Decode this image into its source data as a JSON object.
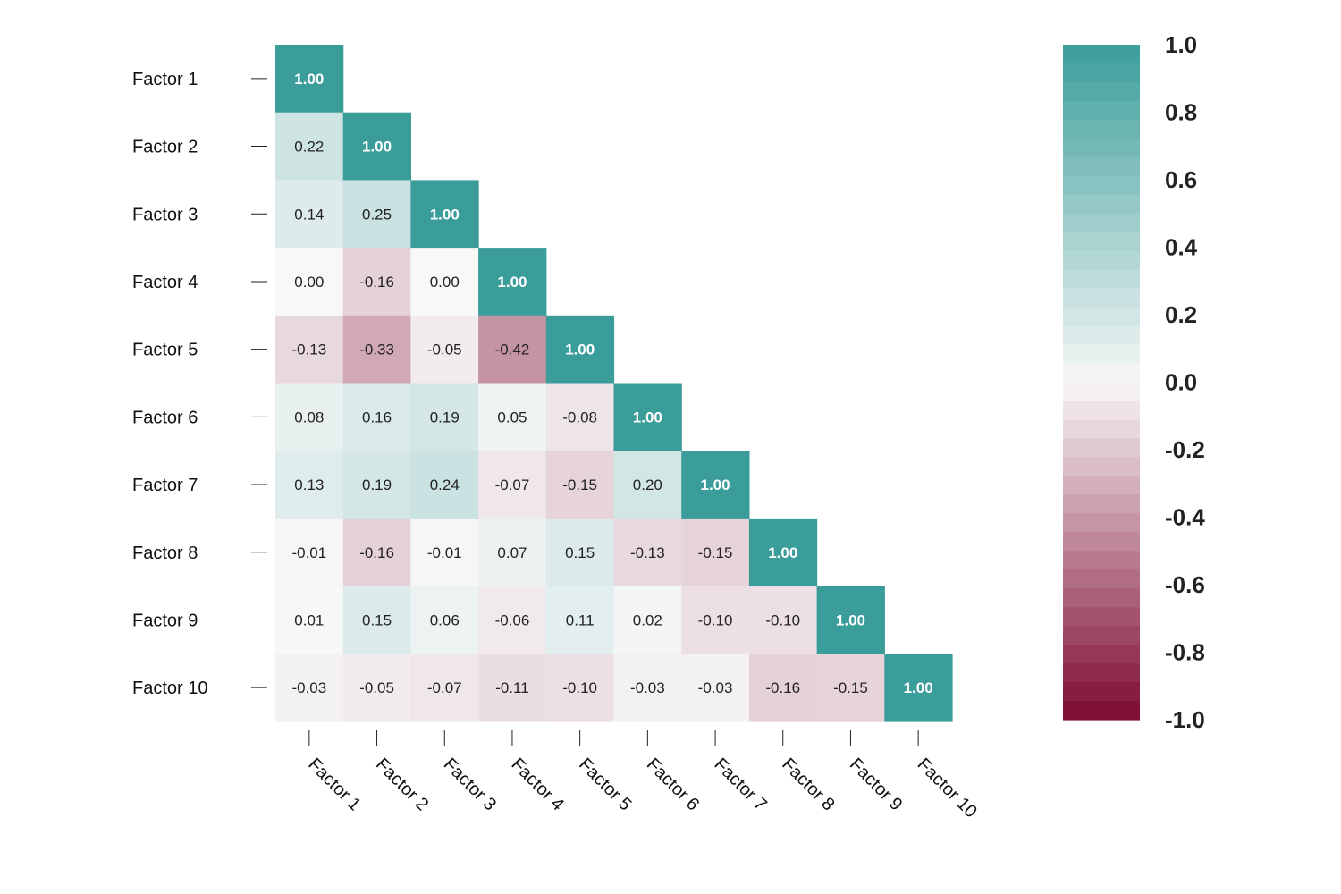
{
  "chart_data": {
    "type": "heatmap",
    "title": "",
    "xlabel": "",
    "ylabel": "",
    "row_labels": [
      "Factor 1",
      "Factor 2",
      "Factor 3",
      "Factor 4",
      "Factor 5",
      "Factor 6",
      "Factor 7",
      "Factor 8",
      "Factor 9",
      "Factor 10"
    ],
    "col_labels": [
      "Factor 1",
      "Factor 2",
      "Factor 3",
      "Factor 4",
      "Factor 5",
      "Factor 6",
      "Factor 7",
      "Factor 8",
      "Factor 9",
      "Factor 10"
    ],
    "mask": "upper-triangle",
    "values": [
      [
        1.0
      ],
      [
        0.22,
        1.0
      ],
      [
        0.14,
        0.25,
        1.0
      ],
      [
        0.0,
        -0.16,
        0.0,
        1.0
      ],
      [
        -0.13,
        -0.33,
        -0.05,
        -0.42,
        1.0
      ],
      [
        0.08,
        0.16,
        0.19,
        0.05,
        -0.08,
        1.0
      ],
      [
        0.13,
        0.19,
        0.24,
        -0.07,
        -0.15,
        0.2,
        1.0
      ],
      [
        -0.01,
        -0.16,
        -0.01,
        0.07,
        0.15,
        -0.13,
        -0.15,
        1.0
      ],
      [
        0.01,
        0.15,
        0.06,
        -0.06,
        0.11,
        0.02,
        -0.1,
        -0.1,
        1.0
      ],
      [
        -0.03,
        -0.05,
        -0.07,
        -0.11,
        -0.1,
        -0.03,
        -0.03,
        -0.16,
        -0.15,
        1.0
      ]
    ],
    "cell_labels": [
      [
        "1.00"
      ],
      [
        "0.22",
        "1.00"
      ],
      [
        "0.14",
        "0.25",
        "1.00"
      ],
      [
        "0.00",
        "-0.16",
        "0.00",
        "1.00"
      ],
      [
        "-0.13",
        "-0.33",
        "-0.05",
        "-0.42",
        "1.00"
      ],
      [
        "0.08",
        "0.16",
        "0.19",
        "0.05",
        "-0.08",
        "1.00"
      ],
      [
        "0.13",
        "0.19",
        "0.24",
        "-0.07",
        "-0.15",
        "0.20",
        "1.00"
      ],
      [
        "-0.01",
        "-0.16",
        "-0.01",
        "0.07",
        "0.15",
        "-0.13",
        "-0.15",
        "1.00"
      ],
      [
        "0.01",
        "0.15",
        "0.06",
        "-0.06",
        "0.11",
        "0.02",
        "-0.10",
        "-0.10",
        "1.00"
      ],
      [
        "-0.03",
        "-0.05",
        "-0.07",
        "-0.11",
        "-0.10",
        "-0.03",
        "-0.03",
        "-0.16",
        "-0.15",
        "1.00"
      ]
    ],
    "value_range": [
      -1.0,
      1.0
    ],
    "colorbar": {
      "ticks": [
        "1.0",
        "0.8",
        "0.6",
        "0.4",
        "0.2",
        "0.0",
        "-0.2",
        "-0.4",
        "-0.6",
        "-0.8",
        "-1.0"
      ],
      "levels": 36,
      "colors": {
        "max": "#3a9d9a",
        "mid": "#f8f8f8",
        "min": "#7e0a2e"
      }
    }
  }
}
